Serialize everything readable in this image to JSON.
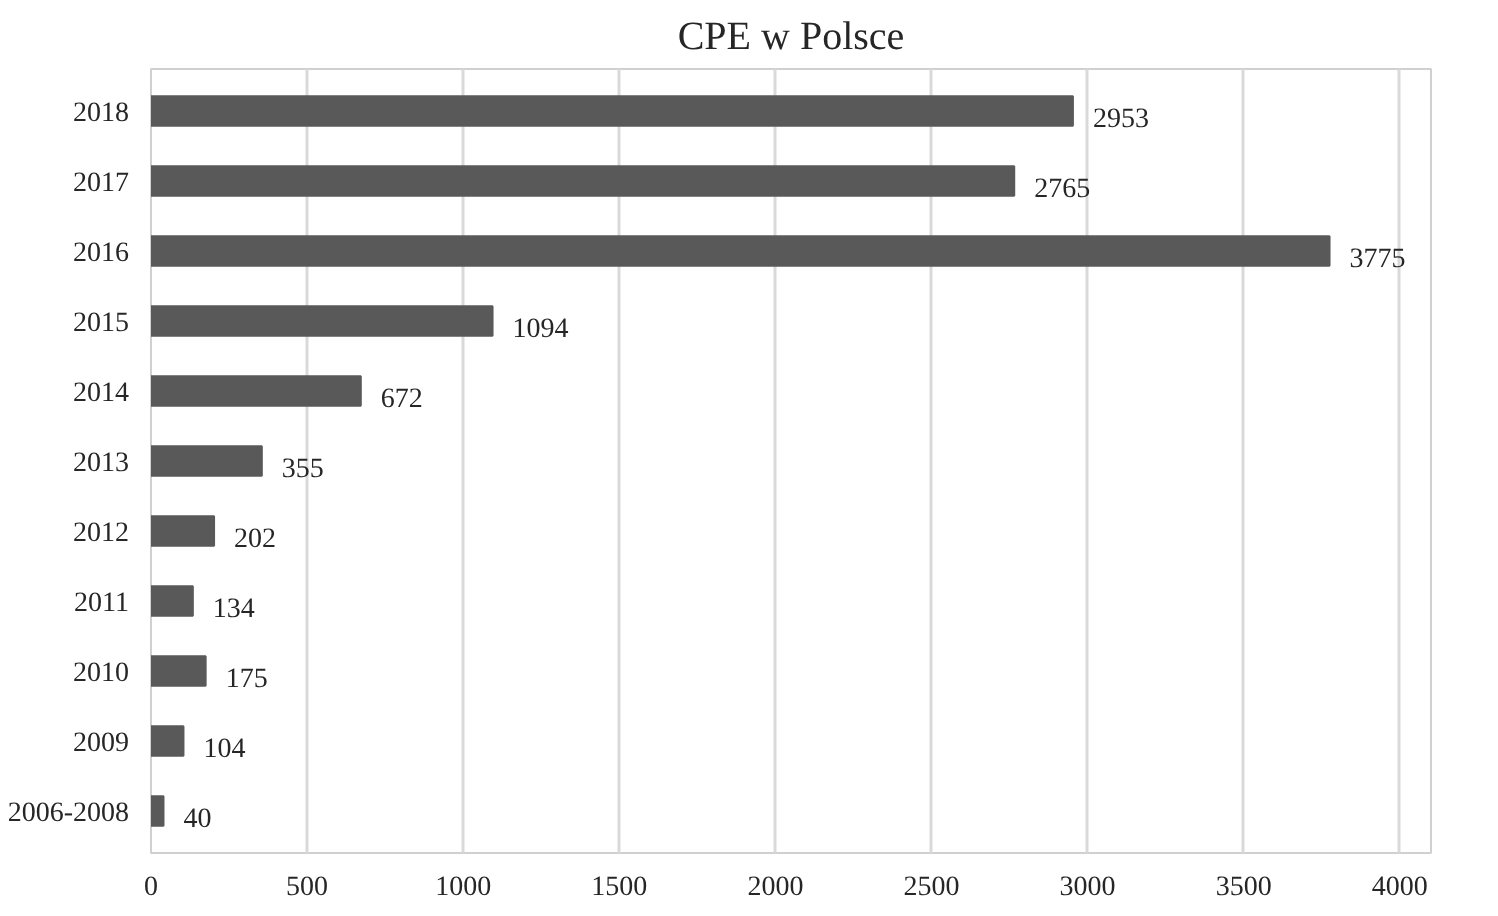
{
  "chart_data": {
    "type": "bar",
    "orientation": "horizontal",
    "title": "CPE w Polsce",
    "categories": [
      "2018",
      "2017",
      "2016",
      "2015",
      "2014",
      "2013",
      "2012",
      "2011",
      "2010",
      "2009",
      "2006-2008"
    ],
    "values": [
      2953,
      2765,
      3775,
      1094,
      672,
      355,
      202,
      134,
      175,
      104,
      40
    ],
    "color": "#595959",
    "xlim": [
      0,
      4100
    ],
    "xticks": [
      0,
      500,
      1000,
      1500,
      2000,
      2500,
      3000,
      3500,
      4000
    ],
    "grid": "x",
    "data_labels": true
  }
}
